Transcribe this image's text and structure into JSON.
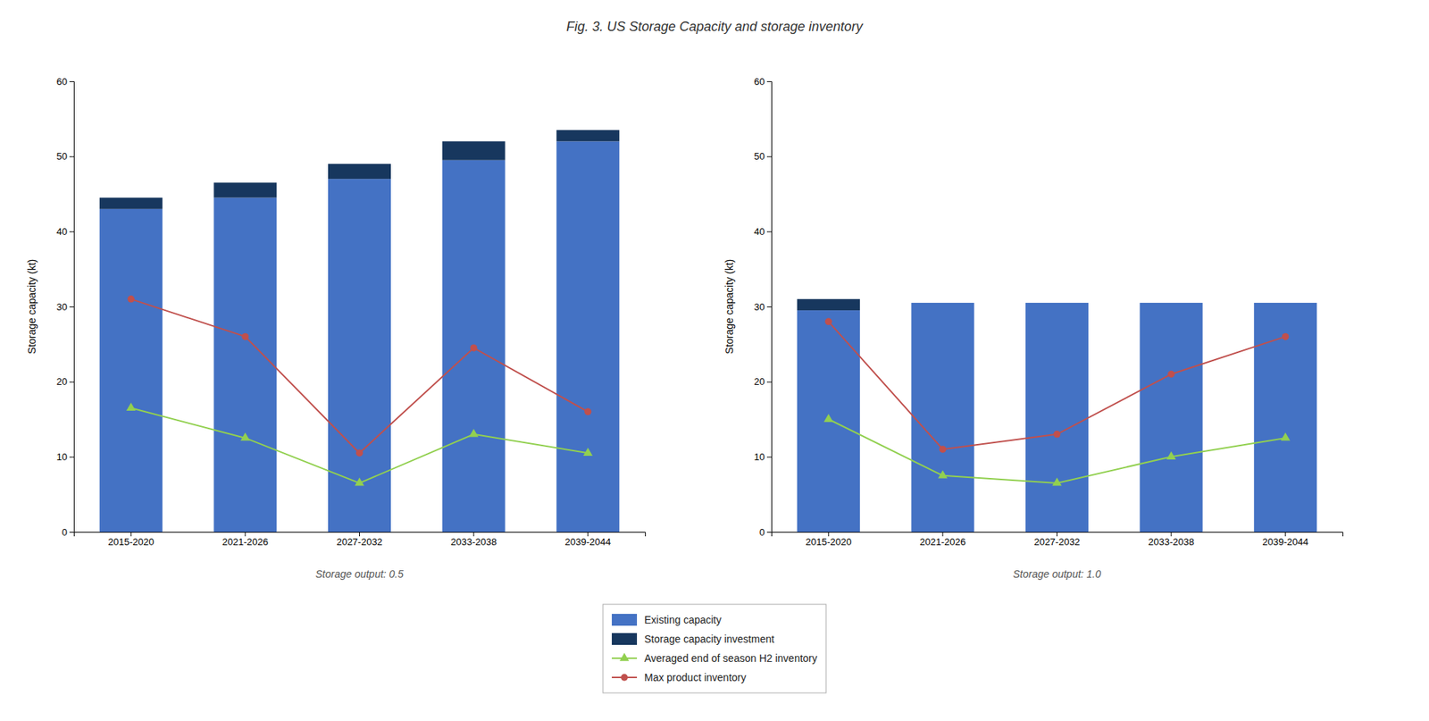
{
  "title": "Fig. 3. US Storage Capacity and storage inventory",
  "chart_data": [
    {
      "type": "bar",
      "subtitle": "Storage output: 0.5",
      "categories": [
        "2015-2020",
        "2021-2026",
        "2027-2032",
        "2033-2038",
        "2039-2044"
      ],
      "stacked": true,
      "grid": false,
      "legend": "bottom",
      "ylabel": "Storage capacity (kt)",
      "ylim": [
        0,
        60
      ],
      "yticks": [
        0,
        10,
        20,
        30,
        40,
        50,
        60
      ],
      "series": [
        {
          "name": "Existing capacity",
          "type": "bar",
          "color": "#4472C4",
          "values": [
            43.0,
            44.5,
            47.0,
            49.5,
            52.0
          ]
        },
        {
          "name": "Storage capacity investment",
          "type": "bar",
          "color": "#17375E",
          "values": [
            1.5,
            2.0,
            2.0,
            2.5,
            1.5
          ]
        },
        {
          "name": "Averaged end of season H2 inventory",
          "type": "line",
          "color": "#92D050",
          "marker": "triangle",
          "values": [
            16.5,
            12.5,
            6.5,
            13.0,
            10.5
          ]
        },
        {
          "name": "Max product inventory",
          "type": "line",
          "color": "#C0504D",
          "marker": "circle",
          "values": [
            31.0,
            26.0,
            10.5,
            24.5,
            16.0
          ]
        }
      ]
    },
    {
      "type": "bar",
      "subtitle": "Storage output: 1.0",
      "categories": [
        "2015-2020",
        "2021-2026",
        "2027-2032",
        "2033-2038",
        "2039-2044"
      ],
      "stacked": true,
      "grid": false,
      "ylabel": "Storage capacity (kt)",
      "ylim": [
        0,
        60
      ],
      "yticks": [
        0,
        10,
        20,
        30,
        40,
        50,
        60
      ],
      "series": [
        {
          "type": "bar",
          "color": "#4472C4",
          "values": [
            29.5,
            30.5,
            30.5,
            30.5,
            30.5
          ]
        },
        {
          "type": "bar",
          "color": "#17375E",
          "values": [
            1.5,
            0.0,
            0.0,
            0.0,
            0.0
          ]
        },
        {
          "type": "line",
          "color": "#92D050",
          "marker": "triangle",
          "values": [
            15.0,
            7.5,
            6.5,
            10.0,
            12.5
          ]
        },
        {
          "type": "line",
          "color": "#C0504D",
          "marker": "circle",
          "values": [
            28.0,
            11.0,
            13.0,
            21.0,
            26.0
          ]
        }
      ]
    }
  ]
}
